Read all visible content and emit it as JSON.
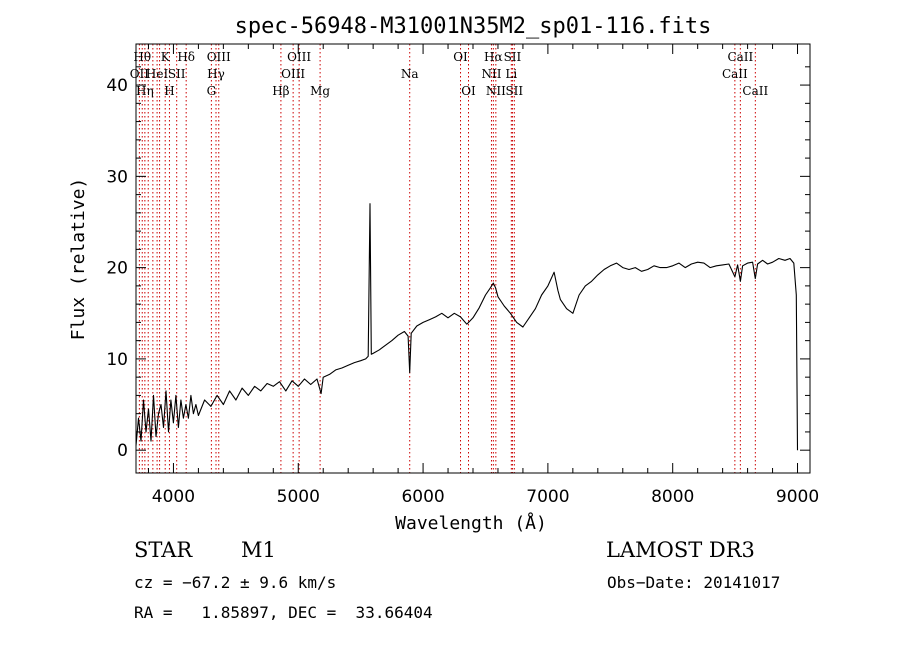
{
  "chart_data": {
    "type": "line",
    "title": "spec-56948-M31001N35M2_sp01-116.fits",
    "xlabel": "Wavelength (Å)",
    "ylabel": "Flux (relative)",
    "xlim": [
      3700,
      9100
    ],
    "ylim": [
      -2.5,
      44.5
    ],
    "x_ticks": [
      4000,
      5000,
      6000,
      7000,
      8000,
      9000
    ],
    "x_tick_labels": [
      "4000",
      "5000",
      "6000",
      "7000",
      "8000",
      "9000"
    ],
    "y_ticks": [
      0,
      10,
      20,
      30,
      40
    ],
    "y_tick_labels": [
      "0",
      "10",
      "20",
      "30",
      "40"
    ],
    "grid": false,
    "line_color": "#000000",
    "marker_color": "#cc0000",
    "series": [
      {
        "name": "spectrum",
        "points": [
          [
            3700,
            0.5
          ],
          [
            3720,
            3.5
          ],
          [
            3740,
            1.0
          ],
          [
            3760,
            5.5
          ],
          [
            3780,
            2.0
          ],
          [
            3800,
            4.5
          ],
          [
            3820,
            1.0
          ],
          [
            3840,
            6.0
          ],
          [
            3860,
            1.5
          ],
          [
            3880,
            4.0
          ],
          [
            3900,
            5.0
          ],
          [
            3920,
            2.5
          ],
          [
            3940,
            6.5
          ],
          [
            3960,
            2.0
          ],
          [
            3980,
            5.5
          ],
          [
            4000,
            3.0
          ],
          [
            4020,
            6.0
          ],
          [
            4040,
            2.5
          ],
          [
            4060,
            5.5
          ],
          [
            4080,
            3.5
          ],
          [
            4100,
            5.0
          ],
          [
            4120,
            3.5
          ],
          [
            4140,
            6.0
          ],
          [
            4160,
            4.0
          ],
          [
            4180,
            5.0
          ],
          [
            4200,
            3.8
          ],
          [
            4250,
            5.5
          ],
          [
            4300,
            4.8
          ],
          [
            4350,
            6.0
          ],
          [
            4400,
            5.0
          ],
          [
            4450,
            6.5
          ],
          [
            4500,
            5.5
          ],
          [
            4550,
            6.8
          ],
          [
            4600,
            6.0
          ],
          [
            4650,
            7.0
          ],
          [
            4700,
            6.5
          ],
          [
            4750,
            7.3
          ],
          [
            4800,
            7.0
          ],
          [
            4850,
            7.5
          ],
          [
            4900,
            6.5
          ],
          [
            4950,
            7.6
          ],
          [
            5000,
            7.0
          ],
          [
            5050,
            7.8
          ],
          [
            5100,
            7.2
          ],
          [
            5150,
            7.8
          ],
          [
            5183,
            6.2
          ],
          [
            5200,
            8.0
          ],
          [
            5250,
            8.3
          ],
          [
            5300,
            8.8
          ],
          [
            5350,
            9.0
          ],
          [
            5400,
            9.3
          ],
          [
            5450,
            9.6
          ],
          [
            5500,
            9.8
          ],
          [
            5540,
            10.0
          ],
          [
            5560,
            10.3
          ],
          [
            5575,
            27.0
          ],
          [
            5585,
            10.5
          ],
          [
            5600,
            10.6
          ],
          [
            5650,
            11.0
          ],
          [
            5700,
            11.5
          ],
          [
            5750,
            12.0
          ],
          [
            5800,
            12.6
          ],
          [
            5850,
            13.0
          ],
          [
            5880,
            12.5
          ],
          [
            5893,
            8.5
          ],
          [
            5905,
            12.8
          ],
          [
            5950,
            13.6
          ],
          [
            6000,
            14.0
          ],
          [
            6050,
            14.3
          ],
          [
            6100,
            14.6
          ],
          [
            6150,
            15.0
          ],
          [
            6200,
            14.5
          ],
          [
            6250,
            15.0
          ],
          [
            6300,
            14.6
          ],
          [
            6350,
            13.8
          ],
          [
            6400,
            14.5
          ],
          [
            6450,
            15.6
          ],
          [
            6500,
            17.0
          ],
          [
            6540,
            17.8
          ],
          [
            6563,
            18.3
          ],
          [
            6580,
            17.8
          ],
          [
            6600,
            16.8
          ],
          [
            6650,
            15.8
          ],
          [
            6700,
            15.0
          ],
          [
            6750,
            14.0
          ],
          [
            6800,
            13.5
          ],
          [
            6850,
            14.5
          ],
          [
            6900,
            15.5
          ],
          [
            6950,
            17.0
          ],
          [
            7000,
            18.0
          ],
          [
            7050,
            19.5
          ],
          [
            7080,
            17.5
          ],
          [
            7100,
            16.5
          ],
          [
            7150,
            15.5
          ],
          [
            7200,
            15.0
          ],
          [
            7250,
            17.0
          ],
          [
            7300,
            18.0
          ],
          [
            7350,
            18.5
          ],
          [
            7400,
            19.2
          ],
          [
            7450,
            19.8
          ],
          [
            7500,
            20.2
          ],
          [
            7550,
            20.5
          ],
          [
            7600,
            20.0
          ],
          [
            7650,
            19.8
          ],
          [
            7700,
            20.0
          ],
          [
            7750,
            19.6
          ],
          [
            7800,
            19.8
          ],
          [
            7850,
            20.2
          ],
          [
            7900,
            20.0
          ],
          [
            7950,
            20.0
          ],
          [
            8000,
            20.2
          ],
          [
            8050,
            20.5
          ],
          [
            8100,
            20.0
          ],
          [
            8150,
            20.4
          ],
          [
            8200,
            20.6
          ],
          [
            8250,
            20.5
          ],
          [
            8300,
            20.0
          ],
          [
            8350,
            20.2
          ],
          [
            8400,
            20.3
          ],
          [
            8450,
            20.4
          ],
          [
            8498,
            19.0
          ],
          [
            8520,
            20.3
          ],
          [
            8542,
            18.5
          ],
          [
            8560,
            20.2
          ],
          [
            8600,
            20.5
          ],
          [
            8640,
            20.6
          ],
          [
            8662,
            18.8
          ],
          [
            8680,
            20.4
          ],
          [
            8720,
            20.8
          ],
          [
            8760,
            20.4
          ],
          [
            8800,
            20.6
          ],
          [
            8850,
            21.0
          ],
          [
            8900,
            20.8
          ],
          [
            8940,
            21.0
          ],
          [
            8970,
            20.5
          ],
          [
            8990,
            17.0
          ],
          [
            9000,
            0.0
          ]
        ]
      }
    ],
    "line_markers": [
      {
        "wave": 3727,
        "label": "OII",
        "row": 2
      },
      {
        "wave": 3750,
        "label": "Hθ",
        "row": 1
      },
      {
        "wave": 3771,
        "label": "Hη",
        "row": 3
      },
      {
        "wave": 3798,
        "label": "",
        "row": 0
      },
      {
        "wave": 3835,
        "label": "",
        "row": 0
      },
      {
        "wave": 3869,
        "label": "HeI",
        "row": 2
      },
      {
        "wave": 3889,
        "label": "",
        "row": 0
      },
      {
        "wave": 3934,
        "label": "K",
        "row": 1
      },
      {
        "wave": 3968,
        "label": "H",
        "row": 3
      },
      {
        "wave": 4026,
        "label": "SII",
        "row": 2
      },
      {
        "wave": 4102,
        "label": "Hδ",
        "row": 1
      },
      {
        "wave": 4304,
        "label": "G",
        "row": 3
      },
      {
        "wave": 4341,
        "label": "Hγ",
        "row": 2
      },
      {
        "wave": 4363,
        "label": "OIII",
        "row": 1
      },
      {
        "wave": 4861,
        "label": "Hβ",
        "row": 3
      },
      {
        "wave": 4959,
        "label": "OIII",
        "row": 2
      },
      {
        "wave": 5007,
        "label": "OIII",
        "row": 1
      },
      {
        "wave": 5175,
        "label": "Mg",
        "row": 3
      },
      {
        "wave": 5893,
        "label": "Na",
        "row": 2
      },
      {
        "wave": 6300,
        "label": "OI",
        "row": 1
      },
      {
        "wave": 6364,
        "label": "OI",
        "row": 3
      },
      {
        "wave": 6548,
        "label": "NII",
        "row": 2
      },
      {
        "wave": 6563,
        "label": "Hα",
        "row": 1
      },
      {
        "wave": 6583,
        "label": "NII",
        "row": 3
      },
      {
        "wave": 6707,
        "label": "Li",
        "row": 2
      },
      {
        "wave": 6716,
        "label": "SII",
        "row": 1
      },
      {
        "wave": 6731,
        "label": "SII",
        "row": 3
      },
      {
        "wave": 8498,
        "label": "CaII",
        "row": 2
      },
      {
        "wave": 8542,
        "label": "CaII",
        "row": 1
      },
      {
        "wave": 8662,
        "label": "CaII",
        "row": 3
      }
    ]
  },
  "info": {
    "class": "STAR",
    "subclass": "M1",
    "survey": "LAMOST DR3",
    "redshift": "cz = −67.2 ± 9.6 km/s",
    "obs_date": "Obs−Date: 20141017",
    "coords": "RA =   1.85897, DEC =  33.66404"
  }
}
